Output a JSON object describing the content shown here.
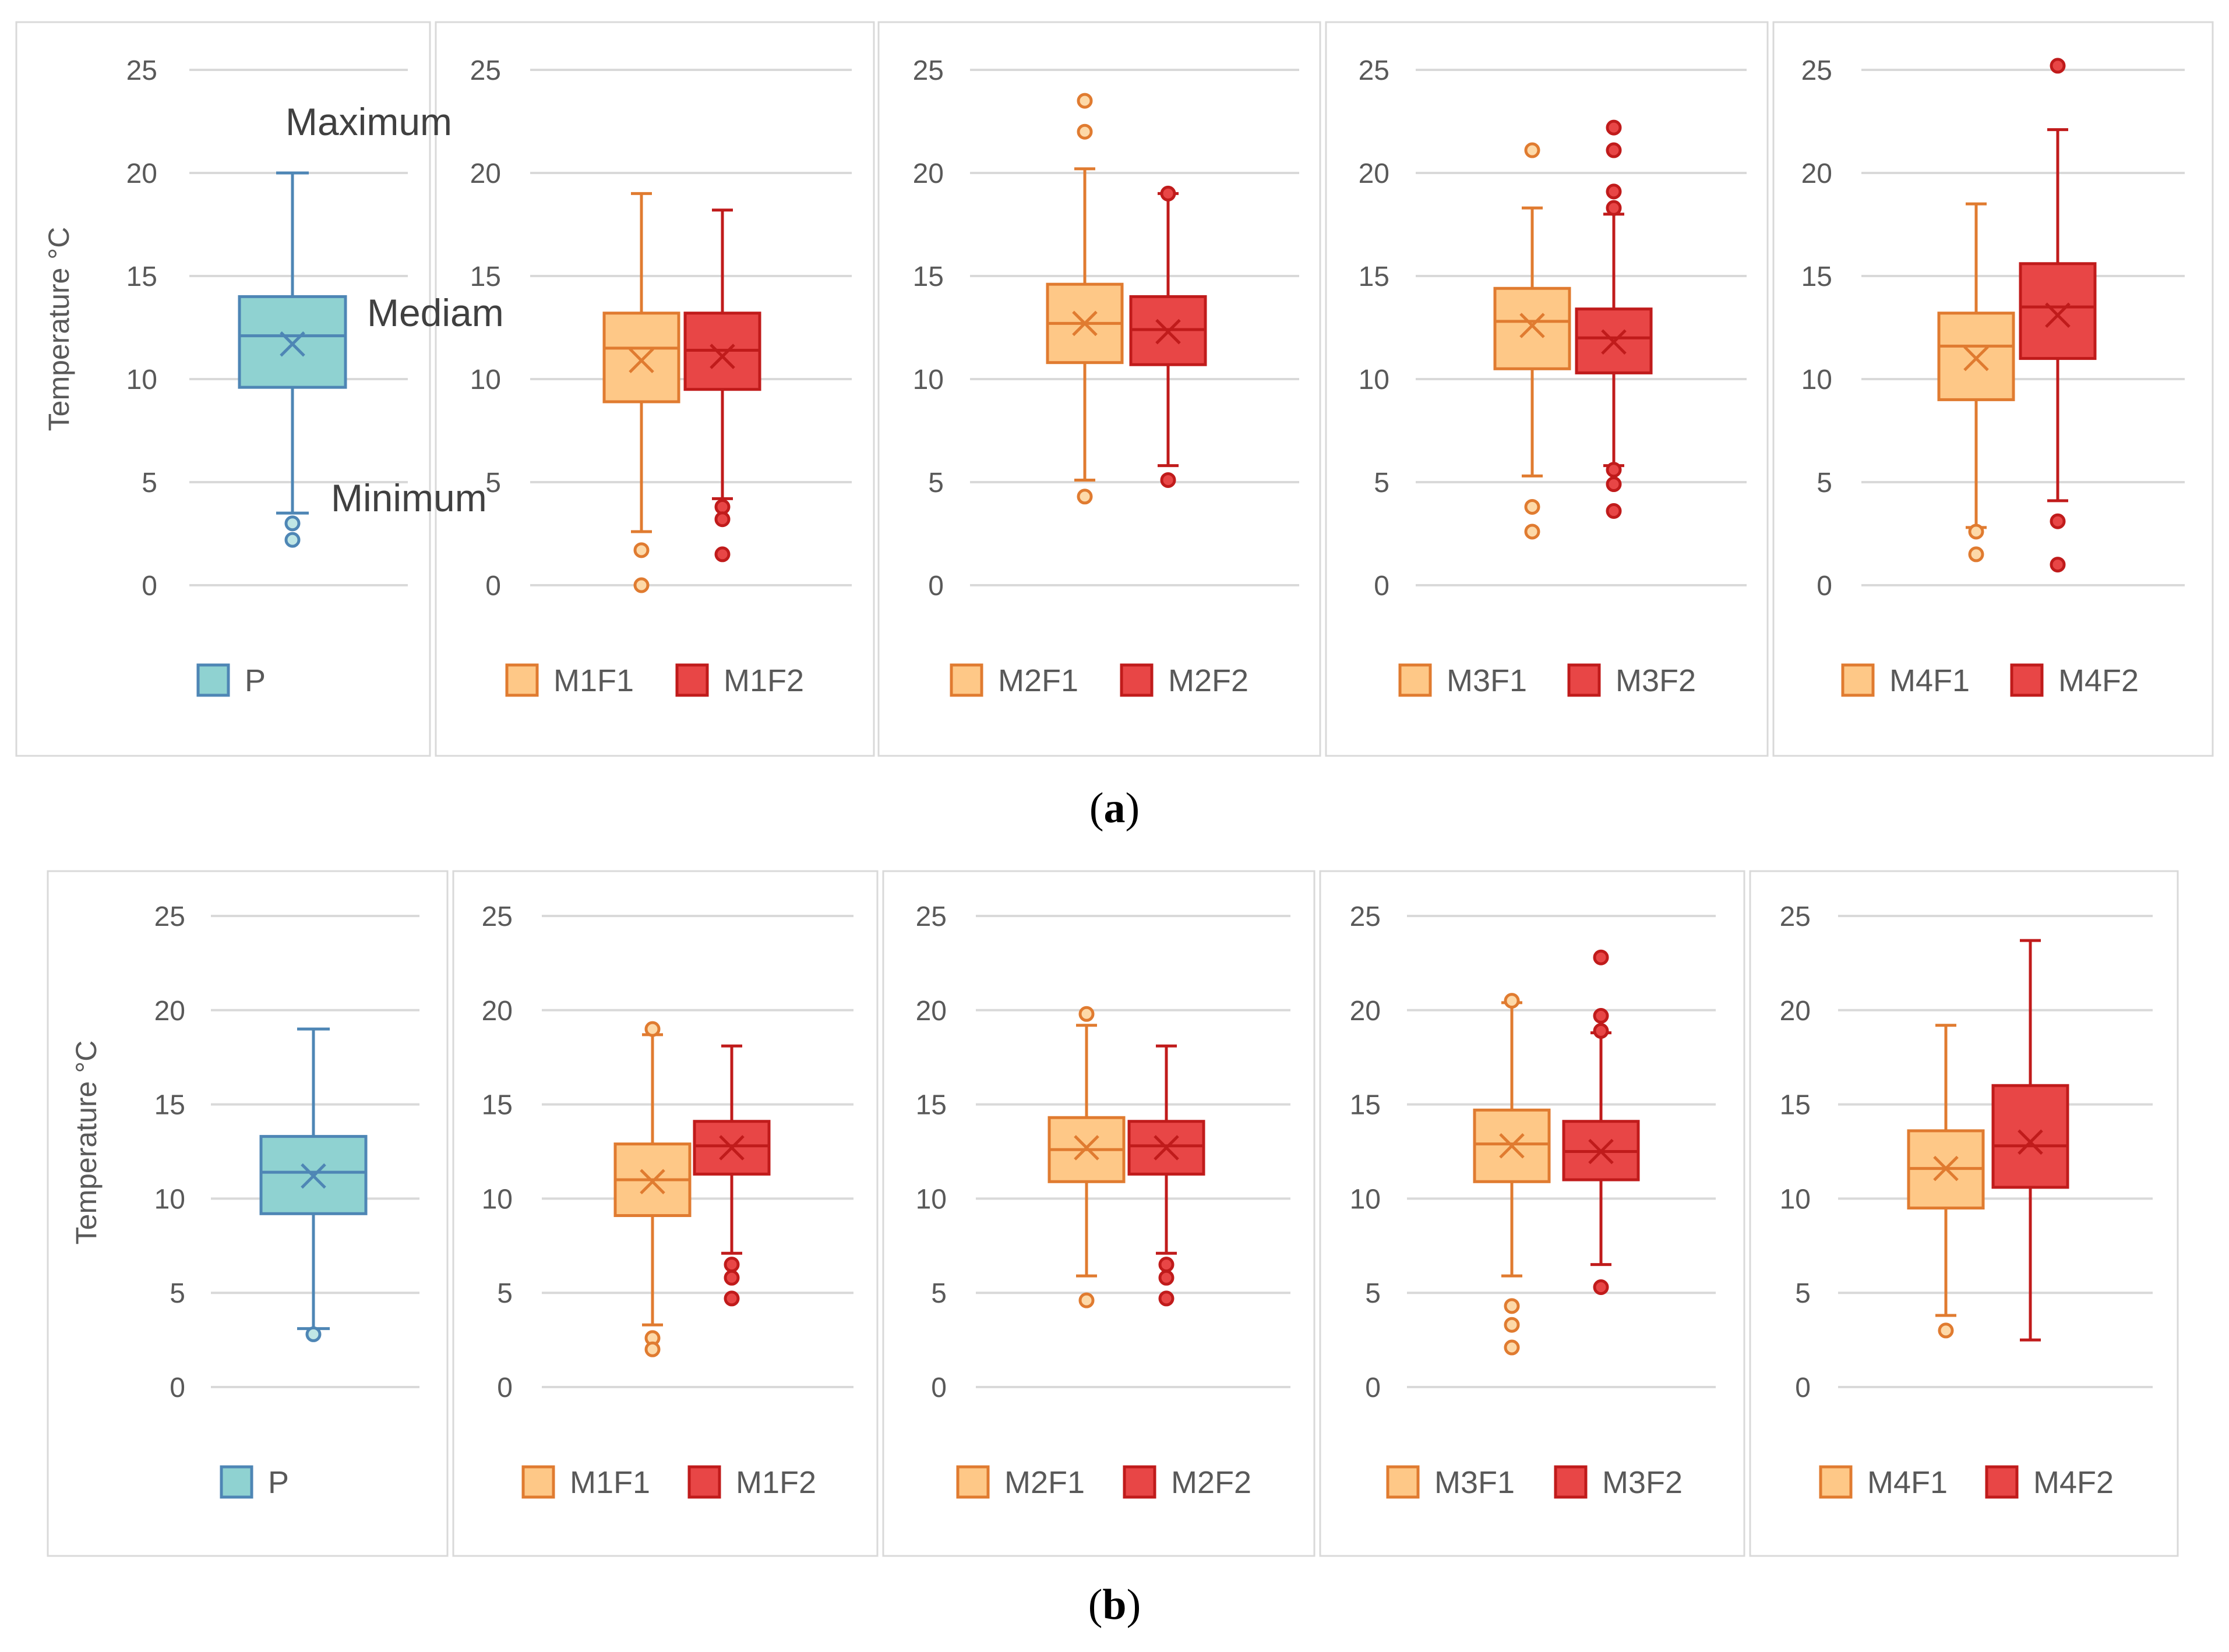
{
  "figure": {
    "y_axis_title": "Temperature °C",
    "ylim": [
      0,
      25
    ],
    "y_ticks": [
      "0",
      "5",
      "10",
      "15",
      "20",
      "25"
    ],
    "colors": {
      "P_fill": "#8fd2d1",
      "P_stroke": "#4e86b5",
      "F1_fill": "#fec887",
      "F1_stroke": "#e07b30",
      "F2_fill": "#e84646",
      "F2_stroke": "#c01b1b",
      "gridline": "#d9d9d9",
      "frame": "#d9d9d9"
    }
  },
  "chart_data": [
    {
      "type": "box",
      "title": "(a)",
      "caption_letter": "a",
      "ylabel": "Temperature °C",
      "ylim": [
        0,
        25
      ],
      "annotations": [
        "Maximum",
        "Mediam",
        "Minimum"
      ],
      "panels": [
        {
          "legend": [
            {
              "name": "P",
              "color": "#8fd2d1"
            }
          ],
          "series": [
            {
              "name": "P",
              "min": 3.5,
              "q1": 9.6,
              "median": 12.1,
              "mean": 11.7,
              "q3": 14.0,
              "max": 20.0,
              "outliers": [
                3.0,
                2.2
              ]
            }
          ]
        },
        {
          "legend": [
            {
              "name": "M1F1",
              "color": "#fec887"
            },
            {
              "name": "M1F2",
              "color": "#e84646"
            }
          ],
          "series": [
            {
              "name": "M1F1",
              "min": 2.6,
              "q1": 8.9,
              "median": 11.5,
              "mean": 10.9,
              "q3": 13.2,
              "max": 19.0,
              "outliers": [
                1.7,
                0.0
              ]
            },
            {
              "name": "M1F2",
              "min": 4.2,
              "q1": 9.5,
              "median": 11.4,
              "mean": 11.1,
              "q3": 13.2,
              "max": 18.2,
              "outliers": [
                3.8,
                3.2,
                1.5
              ]
            }
          ]
        },
        {
          "legend": [
            {
              "name": "M2F1",
              "color": "#fec887"
            },
            {
              "name": "M2F2",
              "color": "#e84646"
            }
          ],
          "series": [
            {
              "name": "M2F1",
              "min": 5.1,
              "q1": 10.8,
              "median": 12.7,
              "mean": 12.7,
              "q3": 14.6,
              "max": 20.2,
              "outliers": [
                23.5,
                22.0,
                4.3
              ]
            },
            {
              "name": "M2F2",
              "min": 5.8,
              "q1": 10.7,
              "median": 12.4,
              "mean": 12.3,
              "q3": 14.0,
              "max": 19.0,
              "outliers": [
                19.0,
                5.1
              ]
            }
          ]
        },
        {
          "legend": [
            {
              "name": "M3F1",
              "color": "#fec887"
            },
            {
              "name": "M3F2",
              "color": "#e84646"
            }
          ],
          "series": [
            {
              "name": "M3F1",
              "min": 5.3,
              "q1": 10.5,
              "median": 12.8,
              "mean": 12.6,
              "q3": 14.4,
              "max": 18.3,
              "outliers": [
                21.1,
                3.8,
                2.6
              ]
            },
            {
              "name": "M3F2",
              "min": 5.8,
              "q1": 10.3,
              "median": 12.0,
              "mean": 11.8,
              "q3": 13.4,
              "max": 18.0,
              "outliers": [
                22.2,
                21.1,
                19.1,
                18.3,
                5.6,
                4.9,
                3.6
              ]
            }
          ]
        },
        {
          "legend": [
            {
              "name": "M4F1",
              "color": "#fec887"
            },
            {
              "name": "M4F2",
              "color": "#e84646"
            }
          ],
          "series": [
            {
              "name": "M4F1",
              "min": 2.8,
              "q1": 9.0,
              "median": 11.6,
              "mean": 11.0,
              "q3": 13.2,
              "max": 18.5,
              "outliers": [
                2.6,
                1.5
              ]
            },
            {
              "name": "M4F2",
              "min": 4.1,
              "q1": 11.0,
              "median": 13.5,
              "mean": 13.1,
              "q3": 15.6,
              "max": 22.1,
              "outliers": [
                25.2,
                3.1,
                1.0
              ]
            }
          ]
        }
      ]
    },
    {
      "type": "box",
      "title": "(b)",
      "caption_letter": "b",
      "ylabel": "Temperature °C",
      "ylim": [
        0,
        25
      ],
      "annotations": [],
      "panels": [
        {
          "legend": [
            {
              "name": "P",
              "color": "#8fd2d1"
            }
          ],
          "series": [
            {
              "name": "P",
              "min": 3.1,
              "q1": 9.2,
              "median": 11.4,
              "mean": 11.2,
              "q3": 13.3,
              "max": 19.0,
              "outliers": [
                2.8
              ]
            }
          ]
        },
        {
          "legend": [
            {
              "name": "M1F1",
              "color": "#fec887"
            },
            {
              "name": "M1F2",
              "color": "#e84646"
            }
          ],
          "series": [
            {
              "name": "M1F1",
              "min": 3.3,
              "q1": 9.1,
              "median": 11.0,
              "mean": 10.9,
              "q3": 12.9,
              "max": 18.7,
              "outliers": [
                19.0,
                2.6,
                2.0
              ]
            },
            {
              "name": "M1F2",
              "min": 7.1,
              "q1": 11.3,
              "median": 12.8,
              "mean": 12.7,
              "q3": 14.1,
              "max": 18.1,
              "outliers": [
                6.5,
                5.8,
                4.7
              ]
            }
          ]
        },
        {
          "legend": [
            {
              "name": "M2F1",
              "color": "#fec887"
            },
            {
              "name": "M2F2",
              "color": "#e84646"
            }
          ],
          "series": [
            {
              "name": "M2F1",
              "min": 5.9,
              "q1": 10.9,
              "median": 12.6,
              "mean": 12.7,
              "q3": 14.3,
              "max": 19.2,
              "outliers": [
                19.8,
                4.6
              ]
            },
            {
              "name": "M2F2",
              "min": 7.1,
              "q1": 11.3,
              "median": 12.8,
              "mean": 12.7,
              "q3": 14.1,
              "max": 18.1,
              "outliers": [
                6.5,
                5.8,
                4.7
              ]
            }
          ]
        },
        {
          "legend": [
            {
              "name": "M3F1",
              "color": "#fec887"
            },
            {
              "name": "M3F2",
              "color": "#e84646"
            }
          ],
          "series": [
            {
              "name": "M3F1",
              "min": 5.9,
              "q1": 10.9,
              "median": 12.9,
              "mean": 12.8,
              "q3": 14.7,
              "max": 20.4,
              "outliers": [
                20.5,
                4.3,
                3.3,
                2.1
              ]
            },
            {
              "name": "M3F2",
              "min": 6.5,
              "q1": 11.0,
              "median": 12.5,
              "mean": 12.5,
              "q3": 14.1,
              "max": 18.8,
              "outliers": [
                22.8,
                19.7,
                18.9,
                5.3
              ]
            }
          ]
        },
        {
          "legend": [
            {
              "name": "M4F1",
              "color": "#fec887"
            },
            {
              "name": "M4F2",
              "color": "#e84646"
            }
          ],
          "series": [
            {
              "name": "M4F1",
              "min": 3.8,
              "q1": 9.5,
              "median": 11.6,
              "mean": 11.6,
              "q3": 13.6,
              "max": 19.2,
              "outliers": [
                3.0
              ]
            },
            {
              "name": "M4F2",
              "min": 2.5,
              "q1": 10.6,
              "median": 12.8,
              "mean": 13.0,
              "q3": 16.0,
              "max": 23.7,
              "outliers": []
            }
          ]
        }
      ]
    }
  ]
}
